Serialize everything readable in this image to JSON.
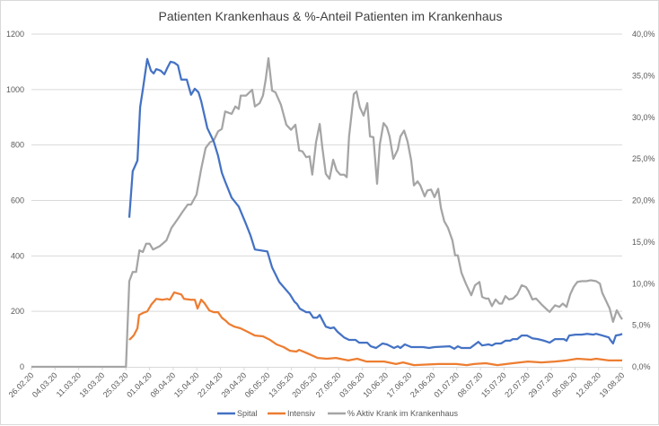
{
  "chart_data": {
    "type": "line",
    "title": "Patienten Krankenhaus & %-Anteil Patienten im Krankenhaus",
    "x_unit": "days since 26.02.20",
    "xlim": [
      0,
      175
    ],
    "x_tick_labels": [
      "26.02.20",
      "04.03.20",
      "11.03.20",
      "18.03.20",
      "25.03.20",
      "01.04.20",
      "08.04.20",
      "15.04.20",
      "22.04.20",
      "29.04.20",
      "06.05.20",
      "13.05.20",
      "20.05.20",
      "27.05.20",
      "03.06.20",
      "10.06.20",
      "17.06.20",
      "24.06.20",
      "01.07.20",
      "08.07.20",
      "15.07.20",
      "22.07.20",
      "29.07.20",
      "05.08.20",
      "12.08.20",
      "19.08.20"
    ],
    "y_left": {
      "ylim": [
        0,
        1200
      ],
      "ticks": [
        "0",
        "200",
        "400",
        "600",
        "800",
        "1000",
        "1200"
      ]
    },
    "y_right": {
      "ylim": [
        0,
        40
      ],
      "ticks": [
        "0,0%",
        "5,0%",
        "10,0%",
        "15,0%",
        "20,0%",
        "25,0%",
        "30,0%",
        "35,0%",
        "40,0%"
      ]
    },
    "grid": true,
    "legend_position": "bottom",
    "series": [
      {
        "name": "Spital",
        "axis": "left",
        "color": "#4472c4",
        "points": [
          [
            29,
            538
          ],
          [
            30,
            705
          ],
          [
            31.4,
            744
          ],
          [
            32.2,
            937
          ],
          [
            33,
            1000
          ],
          [
            34.3,
            1110
          ],
          [
            35.4,
            1068
          ],
          [
            36.2,
            1058
          ],
          [
            37,
            1074
          ],
          [
            38.3,
            1068
          ],
          [
            39.4,
            1055
          ],
          [
            40.2,
            1077
          ],
          [
            41.2,
            1100
          ],
          [
            42.3,
            1097
          ],
          [
            43.4,
            1087
          ],
          [
            44.4,
            1036
          ],
          [
            46,
            1036
          ],
          [
            47.3,
            981
          ],
          [
            48.4,
            1003
          ],
          [
            49.5,
            990
          ],
          [
            50.3,
            958
          ],
          [
            52.1,
            861
          ],
          [
            54,
            813
          ],
          [
            55.3,
            761
          ],
          [
            56.4,
            700
          ],
          [
            57.4,
            668
          ],
          [
            59.3,
            610
          ],
          [
            61.4,
            578
          ],
          [
            63.3,
            523
          ],
          [
            64.9,
            474
          ],
          [
            66.2,
            423
          ],
          [
            69.9,
            416
          ],
          [
            71.3,
            358
          ],
          [
            73.4,
            306
          ],
          [
            76.6,
            261
          ],
          [
            77.9,
            235
          ],
          [
            78.7,
            226
          ],
          [
            79.5,
            210
          ],
          [
            81.4,
            197
          ],
          [
            82.4,
            197
          ],
          [
            83.5,
            177
          ],
          [
            84.6,
            177
          ],
          [
            85.4,
            187
          ],
          [
            87.2,
            145
          ],
          [
            88.6,
            139
          ],
          [
            89.6,
            142
          ],
          [
            90.7,
            126
          ],
          [
            92.6,
            106
          ],
          [
            94.1,
            97
          ],
          [
            96,
            97
          ],
          [
            97.1,
            87
          ],
          [
            99.5,
            87
          ],
          [
            100.5,
            74
          ],
          [
            102.1,
            68
          ],
          [
            104,
            84
          ],
          [
            105.3,
            81
          ],
          [
            107.4,
            68
          ],
          [
            108.5,
            74
          ],
          [
            109.3,
            68
          ],
          [
            110.6,
            81
          ],
          [
            112.5,
            71
          ],
          [
            116,
            71
          ],
          [
            117.8,
            68
          ],
          [
            119.4,
            71
          ],
          [
            123.9,
            74
          ],
          [
            125.3,
            65
          ],
          [
            126.3,
            74
          ],
          [
            127.4,
            68
          ],
          [
            130,
            68
          ],
          [
            132.4,
            90
          ],
          [
            133.5,
            77
          ],
          [
            135.4,
            81
          ],
          [
            136.4,
            77
          ],
          [
            137.5,
            84
          ],
          [
            139.1,
            84
          ],
          [
            140.4,
            94
          ],
          [
            141.8,
            94
          ],
          [
            142.6,
            100
          ],
          [
            143.9,
            100
          ],
          [
            145.2,
            113
          ],
          [
            146.8,
            113
          ],
          [
            148.4,
            103
          ],
          [
            150,
            100
          ],
          [
            151.9,
            94
          ],
          [
            153.5,
            87
          ],
          [
            155.1,
            100
          ],
          [
            157.7,
            100
          ],
          [
            158.5,
            94
          ],
          [
            159.3,
            113
          ],
          [
            161.2,
            116
          ],
          [
            163,
            116
          ],
          [
            164.6,
            119
          ],
          [
            166.5,
            116
          ],
          [
            167.3,
            119
          ],
          [
            169.1,
            113
          ],
          [
            171,
            106
          ],
          [
            171.5,
            97
          ],
          [
            172.3,
            84
          ],
          [
            173.1,
            113
          ],
          [
            174.5,
            116
          ],
          [
            175,
            119
          ]
        ]
      },
      {
        "name": "Intensiv",
        "axis": "left",
        "color": "#ed7d31",
        "points": [
          [
            29,
            97
          ],
          [
            30.3,
            113
          ],
          [
            31.4,
            139
          ],
          [
            31.9,
            187
          ],
          [
            33,
            194
          ],
          [
            34.3,
            200
          ],
          [
            35.6,
            226
          ],
          [
            37,
            245
          ],
          [
            38.8,
            242
          ],
          [
            40.2,
            245
          ],
          [
            41,
            242
          ],
          [
            42.3,
            268
          ],
          [
            44.4,
            261
          ],
          [
            45.2,
            245
          ],
          [
            47.3,
            242
          ],
          [
            48.4,
            242
          ],
          [
            49.2,
            210
          ],
          [
            50.3,
            242
          ],
          [
            51.3,
            229
          ],
          [
            52.7,
            203
          ],
          [
            54,
            197
          ],
          [
            55.3,
            197
          ],
          [
            56.4,
            177
          ],
          [
            57.4,
            168
          ],
          [
            58.5,
            155
          ],
          [
            60.1,
            145
          ],
          [
            61.9,
            139
          ],
          [
            63.6,
            129
          ],
          [
            66.2,
            113
          ],
          [
            68.6,
            110
          ],
          [
            70.7,
            97
          ],
          [
            72.6,
            81
          ],
          [
            74.7,
            71
          ],
          [
            76.6,
            58
          ],
          [
            78.5,
            55
          ],
          [
            79.3,
            61
          ],
          [
            81.9,
            48
          ],
          [
            84.8,
            32
          ],
          [
            87.5,
            29
          ],
          [
            90.2,
            32
          ],
          [
            93.9,
            23
          ],
          [
            96.5,
            29
          ],
          [
            99.2,
            19
          ],
          [
            104.5,
            19
          ],
          [
            108,
            10
          ],
          [
            110.1,
            16
          ],
          [
            113.3,
            6
          ],
          [
            120.5,
            10
          ],
          [
            125.8,
            10
          ],
          [
            129,
            6
          ],
          [
            131.1,
            10
          ],
          [
            134.6,
            13
          ],
          [
            138,
            6
          ],
          [
            142.6,
            13
          ],
          [
            147.1,
            19
          ],
          [
            151.1,
            16
          ],
          [
            155.1,
            19
          ],
          [
            158.5,
            23
          ],
          [
            161.7,
            29
          ],
          [
            165.7,
            26
          ],
          [
            167.3,
            29
          ],
          [
            171,
            23
          ],
          [
            173.7,
            23
          ],
          [
            175,
            23
          ]
        ]
      },
      {
        "name": "% Aktiv Krank im Krankenhaus",
        "axis": "right",
        "color": "#a5a5a5",
        "points": [
          [
            0,
            0
          ],
          [
            28,
            0
          ],
          [
            29,
            10.3
          ],
          [
            30,
            11.4
          ],
          [
            31,
            11.4
          ],
          [
            32,
            14.0
          ],
          [
            33,
            13.8
          ],
          [
            34,
            14.8
          ],
          [
            35,
            14.8
          ],
          [
            36,
            14.1
          ],
          [
            38,
            14.5
          ],
          [
            40,
            15.2
          ],
          [
            41.5,
            16.7
          ],
          [
            43.4,
            17.8
          ],
          [
            44.7,
            18.6
          ],
          [
            46.3,
            19.5
          ],
          [
            47.3,
            19.5
          ],
          [
            48.9,
            20.7
          ],
          [
            50.3,
            23.8
          ],
          [
            51.6,
            26.3
          ],
          [
            52.9,
            27.0
          ],
          [
            54,
            27.2
          ],
          [
            55.3,
            28.3
          ],
          [
            56.4,
            28.6
          ],
          [
            57.4,
            30.7
          ],
          [
            59.3,
            30.4
          ],
          [
            60.4,
            31.3
          ],
          [
            61.4,
            31.0
          ],
          [
            62,
            32.6
          ],
          [
            63.6,
            32.6
          ],
          [
            65.4,
            33.3
          ],
          [
            66.2,
            31.3
          ],
          [
            67.6,
            31.7
          ],
          [
            68.6,
            32.6
          ],
          [
            69.4,
            34.5
          ],
          [
            70.2,
            37.1
          ],
          [
            71.3,
            33.2
          ],
          [
            72.3,
            33.0
          ],
          [
            73.9,
            31.5
          ],
          [
            75.5,
            29.1
          ],
          [
            76.9,
            28.5
          ],
          [
            78.2,
            29.1
          ],
          [
            79.3,
            26.0
          ],
          [
            80.3,
            25.9
          ],
          [
            81.4,
            25.2
          ],
          [
            82.4,
            25.3
          ],
          [
            83.2,
            23.1
          ],
          [
            84.3,
            27.0
          ],
          [
            85.4,
            29.2
          ],
          [
            86.2,
            26.3
          ],
          [
            87.2,
            23.2
          ],
          [
            88.3,
            22.6
          ],
          [
            89.4,
            24.9
          ],
          [
            90.4,
            23.6
          ],
          [
            91.5,
            23.1
          ],
          [
            92.6,
            23.1
          ],
          [
            93.4,
            22.8
          ],
          [
            94.1,
            27.7
          ],
          [
            95.5,
            32.8
          ],
          [
            96.3,
            33.1
          ],
          [
            97.3,
            31.2
          ],
          [
            98.4,
            30.2
          ],
          [
            99.5,
            31.7
          ],
          [
            100.3,
            27.7
          ],
          [
            101.3,
            27.6
          ],
          [
            102.4,
            22.0
          ],
          [
            103.2,
            26.7
          ],
          [
            104.3,
            29.3
          ],
          [
            105.3,
            28.8
          ],
          [
            106.1,
            27.7
          ],
          [
            107.2,
            25.0
          ],
          [
            108.5,
            26.1
          ],
          [
            109.3,
            27.7
          ],
          [
            110.4,
            28.4
          ],
          [
            111.4,
            27.1
          ],
          [
            112.5,
            24.8
          ],
          [
            113.3,
            21.8
          ],
          [
            114.4,
            22.3
          ],
          [
            115.2,
            21.8
          ],
          [
            116.5,
            20.5
          ],
          [
            117.3,
            21.2
          ],
          [
            118.4,
            21.3
          ],
          [
            119.4,
            20.4
          ],
          [
            120.5,
            21.4
          ],
          [
            121.3,
            19.1
          ],
          [
            122.3,
            17.5
          ],
          [
            123.4,
            16.7
          ],
          [
            124.7,
            15.2
          ],
          [
            125.5,
            13.4
          ],
          [
            126.3,
            13.4
          ],
          [
            127.4,
            11.3
          ],
          [
            128.7,
            10.0
          ],
          [
            130.3,
            8.6
          ],
          [
            131.4,
            9.8
          ],
          [
            132.7,
            10.2
          ],
          [
            133.5,
            8.4
          ],
          [
            134.6,
            8.2
          ],
          [
            135.4,
            8.2
          ],
          [
            136.4,
            7.3
          ],
          [
            137.5,
            8.1
          ],
          [
            138.6,
            7.6
          ],
          [
            139.4,
            7.6
          ],
          [
            140.4,
            8.5
          ],
          [
            141.5,
            8.1
          ],
          [
            142.6,
            8.2
          ],
          [
            143.9,
            8.7
          ],
          [
            145.2,
            9.8
          ],
          [
            146.5,
            9.6
          ],
          [
            147.3,
            9.1
          ],
          [
            148.4,
            8.1
          ],
          [
            149.5,
            8.2
          ],
          [
            151.1,
            7.5
          ],
          [
            152.4,
            7.0
          ],
          [
            153.5,
            6.6
          ],
          [
            154.3,
            7.0
          ],
          [
            155.1,
            7.4
          ],
          [
            156.4,
            7.2
          ],
          [
            157.4,
            7.6
          ],
          [
            158.5,
            7.2
          ],
          [
            159.6,
            8.7
          ],
          [
            160.6,
            9.6
          ],
          [
            161.7,
            10.2
          ],
          [
            163,
            10.3
          ],
          [
            164.4,
            10.3
          ],
          [
            165.7,
            10.4
          ],
          [
            167.3,
            10.3
          ],
          [
            168.4,
            10.0
          ],
          [
            169.1,
            8.9
          ],
          [
            171.3,
            7.0
          ],
          [
            172.3,
            5.4
          ],
          [
            173.4,
            6.8
          ],
          [
            174.5,
            6.0
          ],
          [
            175,
            5.7
          ]
        ]
      }
    ]
  }
}
